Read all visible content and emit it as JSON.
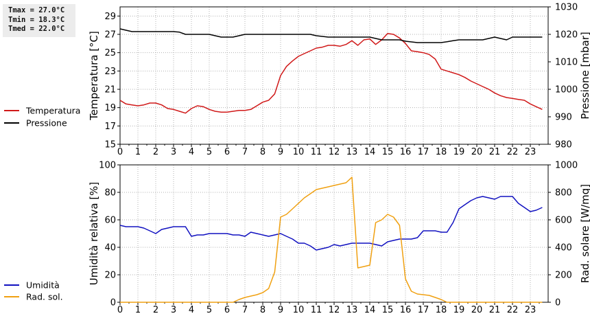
{
  "stats": {
    "tmax": "Tmax = 27.0°C",
    "tmin": "Tmin = 18.3°C",
    "tmed": "Tmed = 22.0°C"
  },
  "chart_data": [
    {
      "type": "line",
      "x_ticks": [
        "0",
        "1",
        "2",
        "3",
        "4",
        "5",
        "6",
        "7",
        "8",
        "9",
        "10",
        "11",
        "12",
        "13",
        "14",
        "15",
        "16",
        "17",
        "18",
        "19",
        "20",
        "21",
        "22",
        "23"
      ],
      "xlim": [
        0,
        24
      ],
      "ylabel": "Temperatura [°C]",
      "ylabel2": "Pressione [mbar]",
      "ylim": [
        15,
        30
      ],
      "y_ticks": [
        "15",
        "17",
        "19",
        "21",
        "23",
        "25",
        "27",
        "29"
      ],
      "ylim2": [
        980,
        1030
      ],
      "y2_ticks": [
        "980",
        "990",
        "1000",
        "1010",
        "1020",
        "1030"
      ],
      "grid": true,
      "legend_position": "left",
      "series": [
        {
          "name": "Temperatura",
          "axis": "left",
          "color": "#d01818",
          "x": [
            0,
            0.33,
            0.67,
            1,
            1.33,
            1.67,
            2,
            2.33,
            2.67,
            3,
            3.33,
            3.67,
            4,
            4.33,
            4.67,
            5,
            5.33,
            5.67,
            6,
            6.33,
            6.67,
            7,
            7.33,
            7.67,
            8,
            8.33,
            8.67,
            9,
            9.33,
            9.67,
            10,
            10.33,
            10.67,
            11,
            11.33,
            11.67,
            12,
            12.33,
            12.67,
            13,
            13.33,
            13.67,
            14,
            14.33,
            14.67,
            15,
            15.33,
            15.67,
            16,
            16.33,
            16.67,
            17,
            17.33,
            17.67,
            18,
            18.33,
            18.67,
            19,
            19.33,
            19.67,
            20,
            20.33,
            20.67,
            21,
            21.33,
            21.67,
            22,
            22.33,
            22.67,
            23,
            23.33,
            23.67
          ],
          "values": [
            19.8,
            19.4,
            19.3,
            19.2,
            19.3,
            19.5,
            19.5,
            19.3,
            18.9,
            18.8,
            18.6,
            18.4,
            18.9,
            19.2,
            19.1,
            18.8,
            18.6,
            18.5,
            18.5,
            18.6,
            18.7,
            18.7,
            18.8,
            19.2,
            19.6,
            19.8,
            20.5,
            22.5,
            23.5,
            24.1,
            24.6,
            24.9,
            25.2,
            25.5,
            25.6,
            25.8,
            25.8,
            25.7,
            25.9,
            26.3,
            25.8,
            26.4,
            26.5,
            25.9,
            26.4,
            27.1,
            27.0,
            26.6,
            26.0,
            25.2,
            25.1,
            25.0,
            24.8,
            24.3,
            23.2,
            23.0,
            22.8,
            22.6,
            22.3,
            21.9,
            21.6,
            21.3,
            21.0,
            20.6,
            20.3,
            20.1,
            20.0,
            19.9,
            19.8,
            19.4,
            19.1,
            18.8
          ]
        },
        {
          "name": "Pressione",
          "axis": "right",
          "color": "#000000",
          "x": [
            0,
            0.33,
            0.67,
            1,
            1.67,
            2,
            2.5,
            3,
            3.33,
            3.67,
            4,
            4.67,
            5,
            5.33,
            5.67,
            6,
            6.33,
            6.67,
            7,
            7.67,
            8,
            8.67,
            9,
            9.67,
            10,
            10.67,
            11,
            11.67,
            12,
            12.67,
            13,
            13.67,
            14,
            14.33,
            14.67,
            15,
            15.67,
            16,
            16.67,
            17,
            17.67,
            18,
            18.33,
            18.67,
            19,
            19.67,
            20,
            20.33,
            20.67,
            21,
            21.33,
            21.67,
            22,
            22.67,
            23,
            23.67
          ],
          "values": [
            1022,
            1021.5,
            1021,
            1021,
            1021,
            1021,
            1021,
            1021,
            1020.8,
            1020,
            1020,
            1020,
            1020,
            1019.5,
            1019,
            1019,
            1019,
            1019.5,
            1020,
            1020,
            1020,
            1020,
            1020,
            1020,
            1020,
            1020,
            1019.5,
            1019,
            1019,
            1019,
            1019,
            1019,
            1019,
            1018.5,
            1018,
            1018,
            1018,
            1017.5,
            1017,
            1017,
            1017,
            1017,
            1017.3,
            1017.7,
            1018,
            1018,
            1018,
            1018,
            1018.5,
            1019,
            1018.5,
            1018,
            1019,
            1019,
            1019,
            1019
          ]
        }
      ]
    },
    {
      "type": "line",
      "x_ticks": [
        "0",
        "1",
        "2",
        "3",
        "4",
        "5",
        "6",
        "7",
        "8",
        "9",
        "10",
        "11",
        "12",
        "13",
        "14",
        "15",
        "16",
        "17",
        "18",
        "19",
        "20",
        "21",
        "22",
        "23"
      ],
      "xlim": [
        0,
        24
      ],
      "ylabel": "Umidità relativa [%]",
      "ylabel2": "Rad. solare [W/mq]",
      "ylim": [
        0,
        100
      ],
      "y_ticks": [
        "0",
        "20",
        "40",
        "60",
        "80",
        "100"
      ],
      "ylim2": [
        0,
        1000
      ],
      "y2_ticks": [
        "0",
        "200",
        "400",
        "600",
        "800",
        "1000"
      ],
      "grid": true,
      "legend_position": "left",
      "series": [
        {
          "name": "Umidità",
          "axis": "left",
          "color": "#1010c0",
          "x": [
            0,
            0.33,
            0.67,
            1,
            1.33,
            1.67,
            2,
            2.33,
            2.67,
            3,
            3.33,
            3.67,
            4,
            4.33,
            4.67,
            5,
            5.33,
            5.67,
            6,
            6.33,
            6.67,
            7,
            7.33,
            7.67,
            8,
            8.33,
            8.67,
            9,
            9.33,
            9.67,
            10,
            10.33,
            10.67,
            11,
            11.33,
            11.67,
            12,
            12.33,
            12.67,
            13,
            13.33,
            13.67,
            14,
            14.33,
            14.67,
            15,
            15.33,
            15.67,
            16,
            16.33,
            16.67,
            17,
            17.33,
            17.67,
            18,
            18.33,
            18.67,
            19,
            19.33,
            19.67,
            20,
            20.33,
            20.67,
            21,
            21.33,
            21.67,
            22,
            22.33,
            22.67,
            23,
            23.33,
            23.67
          ],
          "values": [
            56,
            55,
            55,
            55,
            54,
            52,
            50,
            53,
            54,
            55,
            55,
            55,
            48,
            49,
            49,
            50,
            50,
            50,
            50,
            49,
            49,
            48,
            51,
            50,
            49,
            48,
            49,
            50,
            48,
            46,
            43,
            43,
            41,
            38,
            39,
            40,
            42,
            41,
            42,
            43,
            43,
            43,
            43,
            42,
            41,
            44,
            45,
            46,
            46,
            46,
            47,
            52,
            52,
            52,
            51,
            51,
            58,
            68,
            71,
            74,
            76,
            77,
            76,
            75,
            77,
            77,
            77,
            72,
            69,
            66,
            67,
            69
          ]
        },
        {
          "name": "Rad. sol.",
          "axis": "right",
          "color": "#f0a010",
          "x": [
            0,
            0.33,
            0.67,
            1,
            1.67,
            2,
            2.67,
            3,
            3.67,
            4,
            4.67,
            5,
            5.67,
            6,
            6.33,
            6.67,
            7,
            7.33,
            7.67,
            8,
            8.33,
            8.67,
            9,
            9.33,
            9.67,
            10,
            10.33,
            10.67,
            11,
            11.33,
            11.67,
            12,
            12.33,
            12.67,
            13,
            13.33,
            13.67,
            14,
            14.33,
            14.67,
            15,
            15.33,
            15.67,
            16,
            16.33,
            16.67,
            17,
            17.33,
            17.67,
            18,
            18.33,
            18.67,
            19,
            19.67,
            20,
            20.67,
            21,
            21.67,
            22,
            22.67,
            23,
            23.67
          ],
          "values": [
            0,
            0,
            0,
            0,
            0,
            0,
            0,
            0,
            0,
            0,
            0,
            0,
            0,
            0,
            0,
            20,
            35,
            45,
            55,
            70,
            100,
            220,
            620,
            640,
            680,
            720,
            760,
            790,
            820,
            830,
            840,
            850,
            860,
            870,
            910,
            250,
            260,
            270,
            580,
            600,
            640,
            620,
            560,
            170,
            80,
            60,
            55,
            50,
            35,
            20,
            0,
            0,
            0,
            0,
            0,
            0,
            0,
            0,
            0,
            0,
            0,
            0
          ]
        }
      ]
    }
  ]
}
